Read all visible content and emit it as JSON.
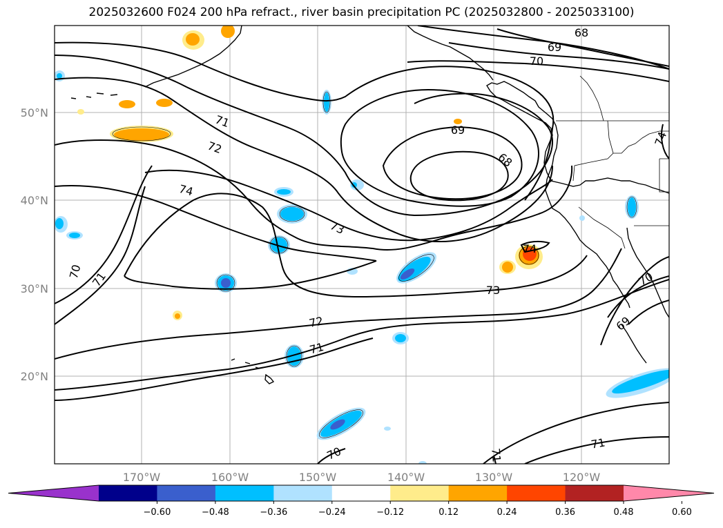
{
  "title": "2025032600 F024 200 hPa refract., river basin precipitation PC (2025032800 - 2025033100)",
  "lat_labels": [
    "50°N",
    "40°N",
    "30°N",
    "20°N"
  ],
  "lon_labels": [
    "170°W",
    "160°W",
    "150°W",
    "140°W",
    "130°W",
    "120°W"
  ],
  "contour_labels": [
    "68",
    "69",
    "70",
    "71",
    "72",
    "73",
    "74"
  ],
  "colorbar": {
    "colors": [
      "#9932cc",
      "#00008b",
      "#3a5fcd",
      "#00bfff",
      "#b0e2ff",
      "#ffffff",
      "#ffec8b",
      "#ffa500",
      "#ff4500",
      "#b22222",
      "#ff88aa"
    ],
    "tick_labels": [
      "−0.60",
      "−0.48",
      "−0.36",
      "−0.24",
      "−0.12",
      "0.12",
      "0.24",
      "0.36",
      "0.48",
      "0.60"
    ]
  },
  "colors": {
    "blue_light": "#b0e2ff",
    "blue": "#00bfff",
    "blue_dark": "#3a5fcd",
    "yellow": "#ffec8b",
    "orange": "#ffa500",
    "red": "#ff4500",
    "grid": "#b0b0b0"
  }
}
